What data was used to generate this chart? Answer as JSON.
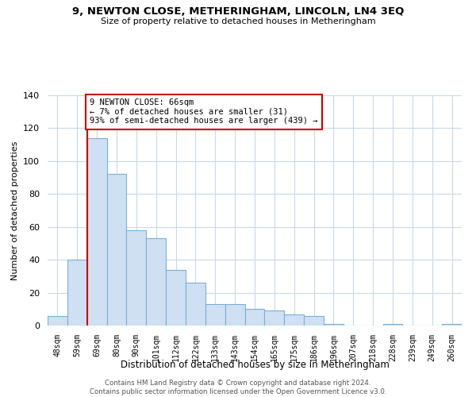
{
  "title": "9, NEWTON CLOSE, METHERINGHAM, LINCOLN, LN4 3EQ",
  "subtitle": "Size of property relative to detached houses in Metheringham",
  "xlabel": "Distribution of detached houses by size in Metheringham",
  "ylabel": "Number of detached properties",
  "bar_labels": [
    "48sqm",
    "59sqm",
    "69sqm",
    "80sqm",
    "90sqm",
    "101sqm",
    "112sqm",
    "122sqm",
    "133sqm",
    "143sqm",
    "154sqm",
    "165sqm",
    "175sqm",
    "186sqm",
    "196sqm",
    "207sqm",
    "218sqm",
    "228sqm",
    "239sqm",
    "249sqm",
    "260sqm"
  ],
  "bar_values": [
    6,
    40,
    114,
    92,
    58,
    53,
    34,
    26,
    13,
    13,
    10,
    9,
    7,
    6,
    1,
    0,
    0,
    1,
    0,
    0,
    1
  ],
  "bar_color": "#cfe0f3",
  "bar_edge_color": "#7bafd4",
  "ref_line_color": "#cc0000",
  "ylim": [
    0,
    140
  ],
  "yticks": [
    0,
    20,
    40,
    60,
    80,
    100,
    120,
    140
  ],
  "annotation_text": "9 NEWTON CLOSE: 66sqm\n← 7% of detached houses are smaller (31)\n93% of semi-detached houses are larger (439) →",
  "annotation_box_color": "#ffffff",
  "annotation_box_edge": "#cc0000",
  "footer1": "Contains HM Land Registry data © Crown copyright and database right 2024.",
  "footer2": "Contains public sector information licensed under the Open Government Licence v3.0.",
  "bg_color": "#ffffff",
  "grid_color": "#c8d8e8"
}
